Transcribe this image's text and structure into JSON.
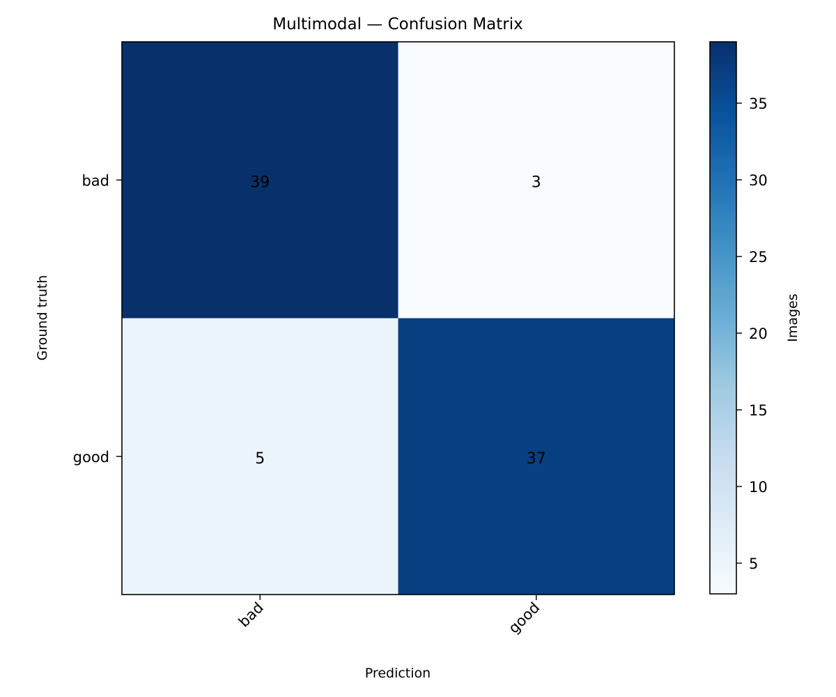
{
  "chart_data": {
    "type": "heatmap",
    "title": "Multimodal — Confusion Matrix",
    "xlabel": "Prediction",
    "ylabel": "Ground truth",
    "x_categories": [
      "bad",
      "good"
    ],
    "y_categories": [
      "bad",
      "good"
    ],
    "values": [
      [
        39,
        3
      ],
      [
        5,
        37
      ]
    ],
    "colorbar": {
      "label": "Images",
      "range": [
        3,
        39
      ],
      "ticks": [
        5,
        10,
        15,
        20,
        25,
        30,
        35
      ],
      "colormap": "Blues"
    },
    "colormap_stops": [
      "#f7fbff",
      "#deebf7",
      "#c6dbef",
      "#9ecae1",
      "#6baed6",
      "#4292c6",
      "#2171b5",
      "#08519c",
      "#08306b"
    ],
    "cell_text_colors": {
      "dark": "#ffffff",
      "light": "#000000"
    },
    "grid": false
  }
}
